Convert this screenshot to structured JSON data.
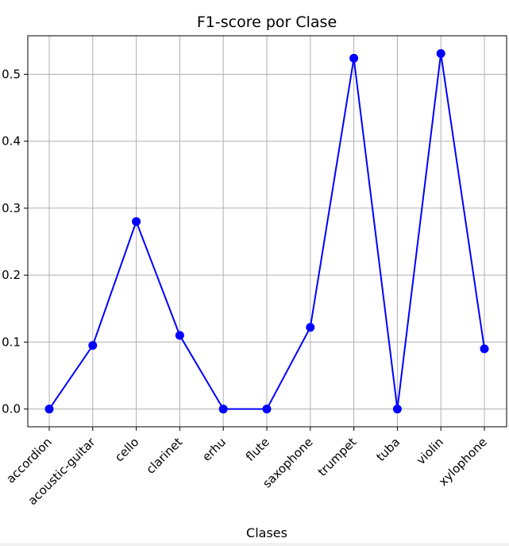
{
  "chart_data": {
    "type": "line",
    "title": "F1-score por Clase",
    "xlabel": "Clases",
    "ylabel": "",
    "categories": [
      "accordion",
      "acoustic-guitar",
      "cello",
      "clarinet",
      "erhu",
      "flute",
      "saxophone",
      "trumpet",
      "tuba",
      "violin",
      "xylophone"
    ],
    "series": [
      {
        "values": [
          0.0,
          0.095,
          0.28,
          0.11,
          0.0,
          0.0,
          0.122,
          0.524,
          0.0,
          0.531,
          0.09
        ]
      }
    ],
    "yticks": [
      "0.0",
      "0.1",
      "0.2",
      "0.3",
      "0.4",
      "0.5"
    ],
    "ylim": [
      -0.0265,
      0.5575
    ],
    "grid": true,
    "line_color": "#0000ff",
    "marker": "circle"
  }
}
